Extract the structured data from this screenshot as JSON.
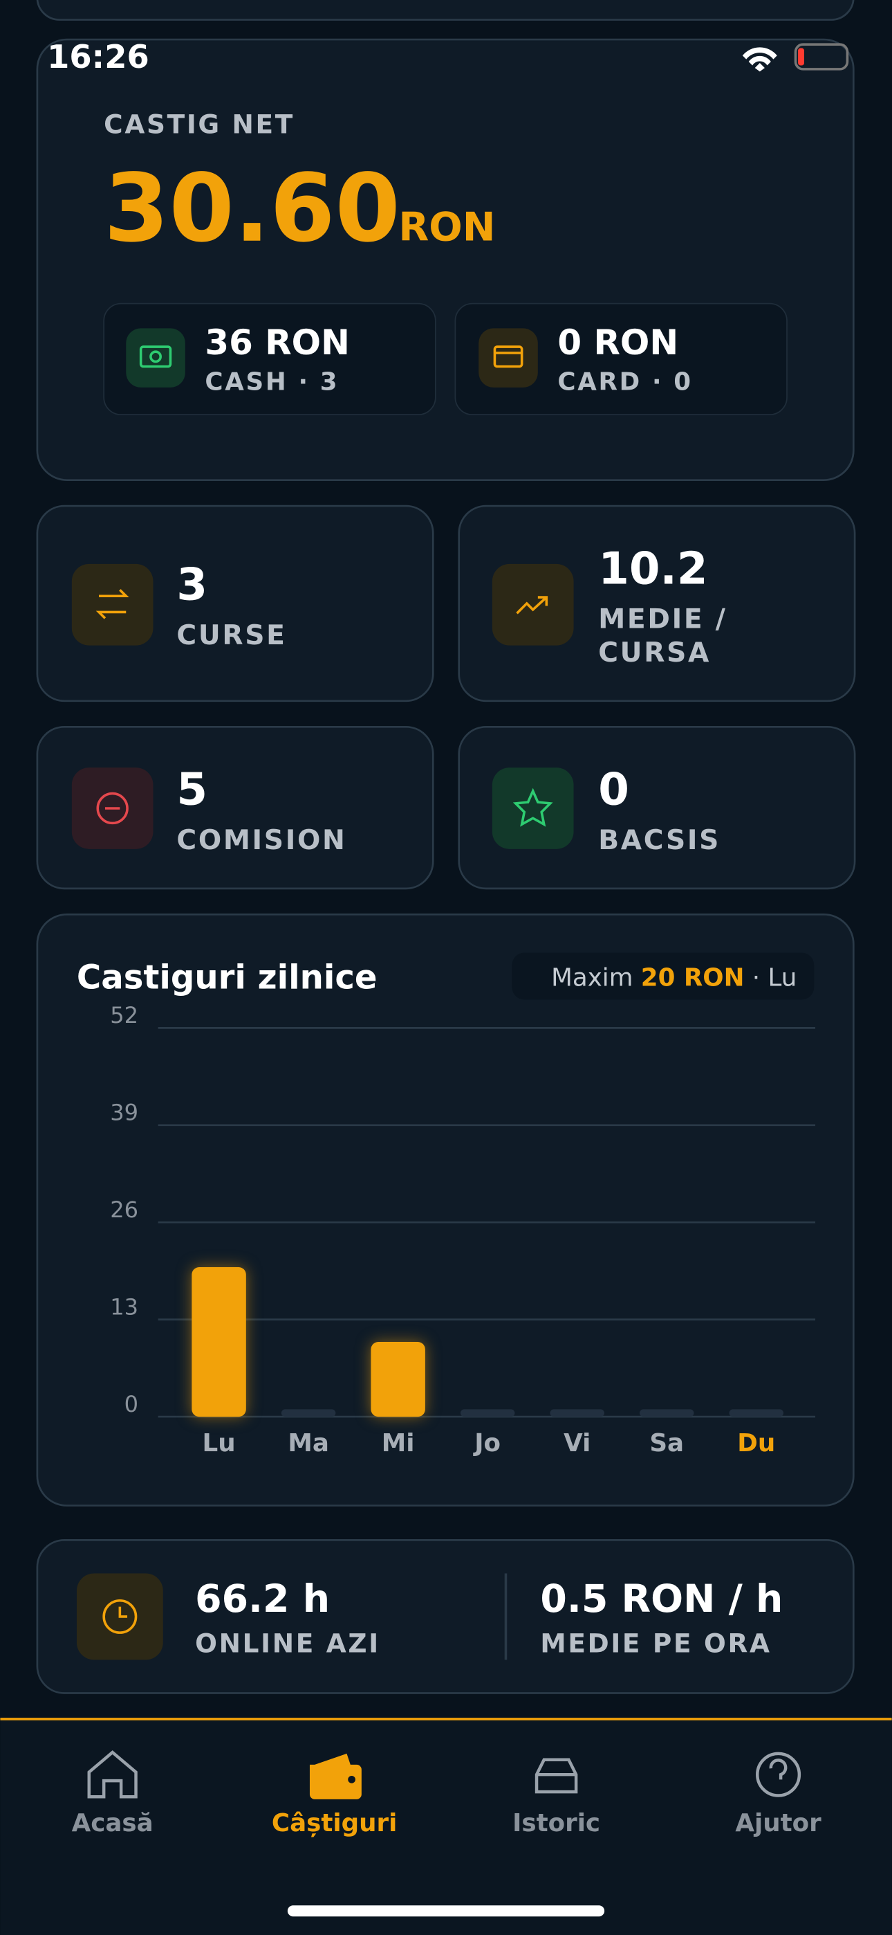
{
  "status_bar": {
    "time": "16:26"
  },
  "summary": {
    "label": "CASTIG NET",
    "amount": "30.60",
    "currency": "RON",
    "cash": {
      "value": "36 RON",
      "label": "CASH · 3"
    },
    "card": {
      "value": "0 RON",
      "label": "CARD · 0"
    }
  },
  "stats": [
    {
      "value": "3",
      "label_lines": [
        "CURSE"
      ]
    },
    {
      "value": "10.2",
      "label_lines": [
        "MEDIE /",
        "CURSA"
      ]
    },
    {
      "value": "5",
      "label_lines": [
        "COMISION"
      ]
    },
    {
      "value": "0",
      "label_lines": [
        "BACSIS"
      ]
    }
  ],
  "chart_data": {
    "type": "bar",
    "title": "Castiguri zilnice",
    "max_label": "Maxim",
    "max_value": "20 RON",
    "max_day": "· Lu",
    "categories": [
      "Lu",
      "Ma",
      "Mi",
      "Jo",
      "Vi",
      "Sa",
      "Du"
    ],
    "values": [
      20,
      0,
      10,
      0,
      0,
      0,
      0
    ],
    "color": "#f2a20a",
    "ylim": [
      0,
      52
    ],
    "yticks": [
      0,
      13,
      26,
      39,
      52
    ],
    "grid": true
  },
  "online": {
    "hours": "66.2 h",
    "hours_label": "ONLINE AZI",
    "rate": "0.5 RON / h",
    "rate_label": "MEDIE PE ORA"
  },
  "nav": [
    "Acasă",
    "Câștiguri",
    "Istoric",
    "Ajutor"
  ]
}
